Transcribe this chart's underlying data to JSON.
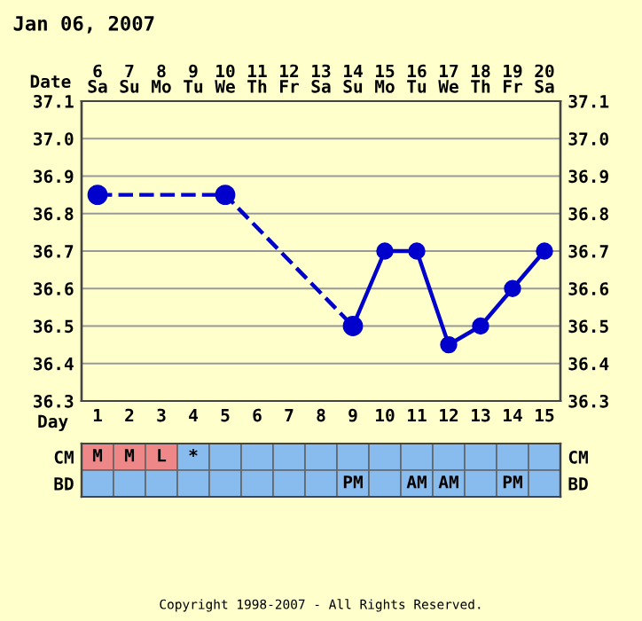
{
  "chart_data": [
    {
      "type": "line",
      "title": "Jan 06, 2007",
      "xlabel": "Day",
      "x2label": "Date",
      "xlim": [
        0.5,
        15.5
      ],
      "xticks": [
        1,
        2,
        3,
        4,
        5,
        6,
        7,
        8,
        9,
        10,
        11,
        12,
        13,
        14,
        15
      ],
      "x2lim": [
        5.5,
        20.5
      ],
      "x2ticks": [
        {
          "value": 6,
          "label": "6\nSa"
        },
        {
          "value": 7,
          "label": "7\nSu"
        },
        {
          "value": 8,
          "label": "8\nMo"
        },
        {
          "value": 9,
          "label": "9\nTu"
        },
        {
          "value": 10,
          "label": "10\nWe"
        },
        {
          "value": 11,
          "label": "11\nTh"
        },
        {
          "value": 12,
          "label": "12\nFr"
        },
        {
          "value": 13,
          "label": "13\nSa"
        },
        {
          "value": 14,
          "label": "14\nSu"
        },
        {
          "value": 15,
          "label": "15\nMo"
        },
        {
          "value": 16,
          "label": "16\nTu"
        },
        {
          "value": 17,
          "label": "17\nWe"
        },
        {
          "value": 18,
          "label": "18\nTh"
        },
        {
          "value": 19,
          "label": "19\nFr"
        },
        {
          "value": 20,
          "label": "20\nSa"
        }
      ],
      "ylim": [
        36.3,
        37.1
      ],
      "yticks": [
        {
          "value": 36.3,
          "label": "36.3"
        },
        {
          "value": 36.4,
          "label": "36.4"
        },
        {
          "value": 36.5,
          "label": "36.5"
        },
        {
          "value": 36.6,
          "label": "36.6"
        },
        {
          "value": 36.7,
          "label": "36.7"
        },
        {
          "value": 36.8,
          "label": "36.8"
        },
        {
          "value": 36.9,
          "label": "36.9"
        },
        {
          "value": 37.0,
          "label": "37.0"
        },
        {
          "value": 37.1,
          "label": "37.1"
        }
      ],
      "y2lim": [
        36.3,
        37.1
      ],
      "y2ticks": [
        {
          "value": 36.3,
          "label": "36.3"
        },
        {
          "value": 36.4,
          "label": "36.4"
        },
        {
          "value": 36.5,
          "label": "36.5"
        },
        {
          "value": 36.6,
          "label": "36.6"
        },
        {
          "value": 36.7,
          "label": "36.7"
        },
        {
          "value": 36.8,
          "label": "36.8"
        },
        {
          "value": 36.9,
          "label": "36.9"
        },
        {
          "value": 37.0,
          "label": "37.0"
        },
        {
          "value": 37.1,
          "label": "37.1"
        }
      ],
      "grid": true,
      "marker": "circle",
      "series": [
        {
          "color": "#0000cc",
          "line_style": "dashed",
          "x": [
            1,
            5,
            9
          ],
          "values": [
            36.85,
            36.85,
            36.5
          ]
        },
        {
          "color": "#0000cc",
          "line_style": "solid",
          "x": [
            9,
            10,
            11,
            12,
            13,
            14,
            15
          ],
          "values": [
            36.5,
            36.7,
            36.7,
            36.45,
            36.5,
            36.6,
            36.7
          ]
        }
      ],
      "annotations": [
        "Copyright 1998-2007 - All Rights Reserved."
      ]
    },
    {
      "type": "other",
      "categories": [
        null,
        null,
        null,
        null,
        null,
        null,
        null,
        null,
        null,
        null,
        null,
        null,
        null,
        null,
        null
      ],
      "y_categories": [
        "CM",
        "BD"
      ],
      "y2_categories": [
        "CM",
        "BD"
      ],
      "colors": [
        [
          "#ee8888",
          "#ee8888",
          "#ee8888",
          "#88bbee",
          "#88bbee",
          "#88bbee",
          "#88bbee",
          "#88bbee",
          "#88bbee",
          "#88bbee",
          "#88bbee",
          "#88bbee",
          "#88bbee",
          "#88bbee",
          "#88bbee"
        ],
        [
          "#88bbee",
          "#88bbee",
          "#88bbee",
          "#88bbee",
          "#88bbee",
          "#88bbee",
          "#88bbee",
          "#88bbee",
          "#88bbee",
          "#88bbee",
          "#88bbee",
          "#88bbee",
          "#88bbee",
          "#88bbee",
          "#88bbee"
        ]
      ],
      "cell_labels": [
        [
          "M",
          "M",
          "L",
          "*",
          null,
          null,
          null,
          null,
          null,
          null,
          null,
          null,
          null,
          null,
          null
        ],
        [
          null,
          null,
          null,
          null,
          null,
          null,
          null,
          null,
          "PM",
          null,
          "AM",
          "AM",
          null,
          "PM",
          null
        ]
      ]
    }
  ]
}
